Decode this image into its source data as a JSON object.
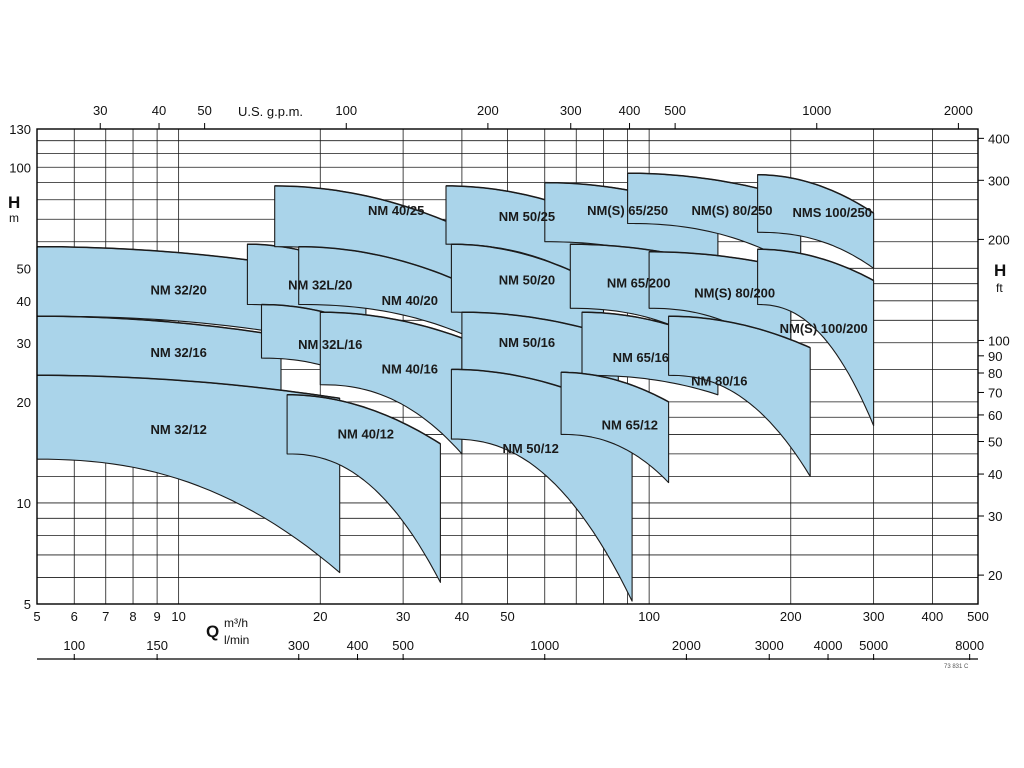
{
  "chart_data": {
    "type": "area",
    "title": "",
    "x_scale": "log",
    "y_scale": "log",
    "grid": true,
    "xlim": [
      5,
      500
    ],
    "ylim": [
      5,
      130
    ],
    "y2lim_ft": [
      16.4,
      426.5
    ],
    "axes": {
      "x_main": {
        "label": "Q",
        "unit": "m³/h",
        "ticks": [
          5,
          6,
          7,
          8,
          9,
          10,
          20,
          30,
          40,
          50,
          100,
          200,
          300,
          400,
          500
        ]
      },
      "x_lmin": {
        "unit": "l/min",
        "ticks": [
          100,
          150,
          300,
          400,
          500,
          1000,
          2000,
          3000,
          4000,
          5000,
          8000
        ]
      },
      "x_gpm": {
        "label": "U.S. g.p.m.",
        "ticks": [
          30,
          40,
          50,
          100,
          200,
          300,
          400,
          500,
          1000,
          2000
        ]
      },
      "y_left": {
        "label": "H",
        "unit": "m",
        "ticks": [
          5,
          10,
          20,
          30,
          40,
          50,
          100,
          130
        ]
      },
      "y_right": {
        "label": "H",
        "unit": "ft",
        "ticks": [
          20,
          30,
          40,
          50,
          60,
          70,
          80,
          90,
          100,
          200,
          300,
          400
        ]
      }
    },
    "series": [
      {
        "name": "NM 32/20",
        "q": [
          5,
          15.5
        ],
        "h_top": [
          58,
          52
        ],
        "h_bottom": [
          36,
          32.5
        ],
        "label_at": [
          10,
          43
        ]
      },
      {
        "name": "NM 32/16",
        "q": [
          5,
          16.5
        ],
        "h_top": [
          36,
          31.5
        ],
        "h_bottom": [
          24,
          20.5
        ],
        "label_at": [
          10,
          28
        ]
      },
      {
        "name": "NM 32/12",
        "q": [
          5,
          22
        ],
        "h_top": [
          24,
          20.5
        ],
        "h_bottom": [
          13.5,
          6.2
        ],
        "label_at": [
          10,
          16.5
        ]
      },
      {
        "name": "NM 32L/20",
        "q": [
          14,
          25
        ],
        "h_top": [
          59,
          48
        ],
        "h_bottom": [
          39,
          33
        ],
        "label_at": [
          20,
          44.5
        ]
      },
      {
        "name": "NM 32L/16",
        "q": [
          15,
          26
        ],
        "h_top": [
          39,
          33
        ],
        "h_bottom": [
          27,
          22
        ],
        "label_at": [
          21,
          29.5
        ]
      },
      {
        "name": "NM 40/25",
        "q": [
          16,
          46
        ],
        "h_top": [
          88,
          60
        ],
        "h_bottom": [
          58,
          34
        ],
        "label_at": [
          29,
          74
        ]
      },
      {
        "name": "NM 40/20",
        "q": [
          18,
          42
        ],
        "h_top": [
          58,
          44
        ],
        "h_bottom": [
          39,
          31
        ],
        "label_at": [
          31,
          40
        ]
      },
      {
        "name": "NM 40/16",
        "q": [
          20,
          40
        ],
        "h_top": [
          37,
          31
        ],
        "h_bottom": [
          22.5,
          14
        ],
        "label_at": [
          31,
          25
        ]
      },
      {
        "name": "NM 40/12",
        "q": [
          17,
          36
        ],
        "h_top": [
          21,
          15
        ],
        "h_bottom": [
          14,
          5.8
        ],
        "label_at": [
          25,
          16
        ]
      },
      {
        "name": "NM 50/25",
        "q": [
          37,
          86
        ],
        "h_top": [
          88,
          66
        ],
        "h_bottom": [
          59,
          40
        ],
        "label_at": [
          55,
          71
        ]
      },
      {
        "name": "NM 50/20",
        "q": [
          38,
          80
        ],
        "h_top": [
          59,
          44
        ],
        "h_bottom": [
          37,
          29
        ],
        "label_at": [
          55,
          46
        ]
      },
      {
        "name": "NM 50/16",
        "q": [
          40,
          86
        ],
        "h_top": [
          37,
          31
        ],
        "h_bottom": [
          24.5,
          17
        ],
        "label_at": [
          55,
          30
        ]
      },
      {
        "name": "NM 50/12",
        "q": [
          38,
          92
        ],
        "h_top": [
          25,
          18
        ],
        "h_bottom": [
          15.5,
          5.1
        ],
        "label_at": [
          56,
          14.5
        ]
      },
      {
        "name": "NM(S) 65/250",
        "q": [
          60,
          140
        ],
        "h_top": [
          90,
          72
        ],
        "h_bottom": [
          60,
          46
        ],
        "label_at": [
          90,
          74
        ]
      },
      {
        "name": "NM 65/200",
        "q": [
          68,
          150
        ],
        "h_top": [
          59,
          50
        ],
        "h_bottom": [
          38,
          27
        ],
        "label_at": [
          95,
          45
        ]
      },
      {
        "name": "NM 65/16",
        "q": [
          72,
          140
        ],
        "h_top": [
          37,
          30
        ],
        "h_bottom": [
          24,
          21
        ],
        "label_at": [
          96,
          27
        ]
      },
      {
        "name": "NM 65/12",
        "q": [
          65,
          110
        ],
        "h_top": [
          24.5,
          20
        ],
        "h_bottom": [
          16,
          11.5
        ],
        "label_at": [
          91,
          17
        ]
      },
      {
        "name": "NM(S) 80/250",
        "q": [
          90,
          210
        ],
        "h_top": [
          96,
          80
        ],
        "h_bottom": [
          68,
          50
        ],
        "label_at": [
          150,
          74
        ]
      },
      {
        "name": "NM(S) 80/200",
        "q": [
          100,
          200
        ],
        "h_top": [
          56,
          50
        ],
        "h_bottom": [
          38,
          26
        ],
        "label_at": [
          152,
          42
        ]
      },
      {
        "name": "NM 80/16",
        "q": [
          110,
          220
        ],
        "h_top": [
          36,
          29
        ],
        "h_bottom": [
          24,
          12
        ],
        "label_at": [
          141,
          23
        ]
      },
      {
        "name": "NMS 100/250",
        "q": [
          170,
          300
        ],
        "h_top": [
          95,
          73
        ],
        "h_bottom": [
          64,
          50
        ],
        "label_at": [
          245,
          73
        ]
      },
      {
        "name": "NM(S) 100/200",
        "q": [
          170,
          300
        ],
        "h_top": [
          57,
          46
        ],
        "h_bottom": [
          39,
          17
        ],
        "label_at": [
          235,
          33
        ]
      }
    ]
  },
  "labels": {
    "h_left": "H",
    "m_unit": "m",
    "h_right": "H",
    "ft_unit": "ft",
    "q_label": "Q",
    "q_unit": "m³/h",
    "lmin_unit": "l/min",
    "gpm_label": "U.S. g.p.m.",
    "ref_code": "73 831 C"
  },
  "colors": {
    "band_fill": "#aad4ea",
    "line": "#1b1b1b",
    "grid": "#1a1a1a"
  }
}
